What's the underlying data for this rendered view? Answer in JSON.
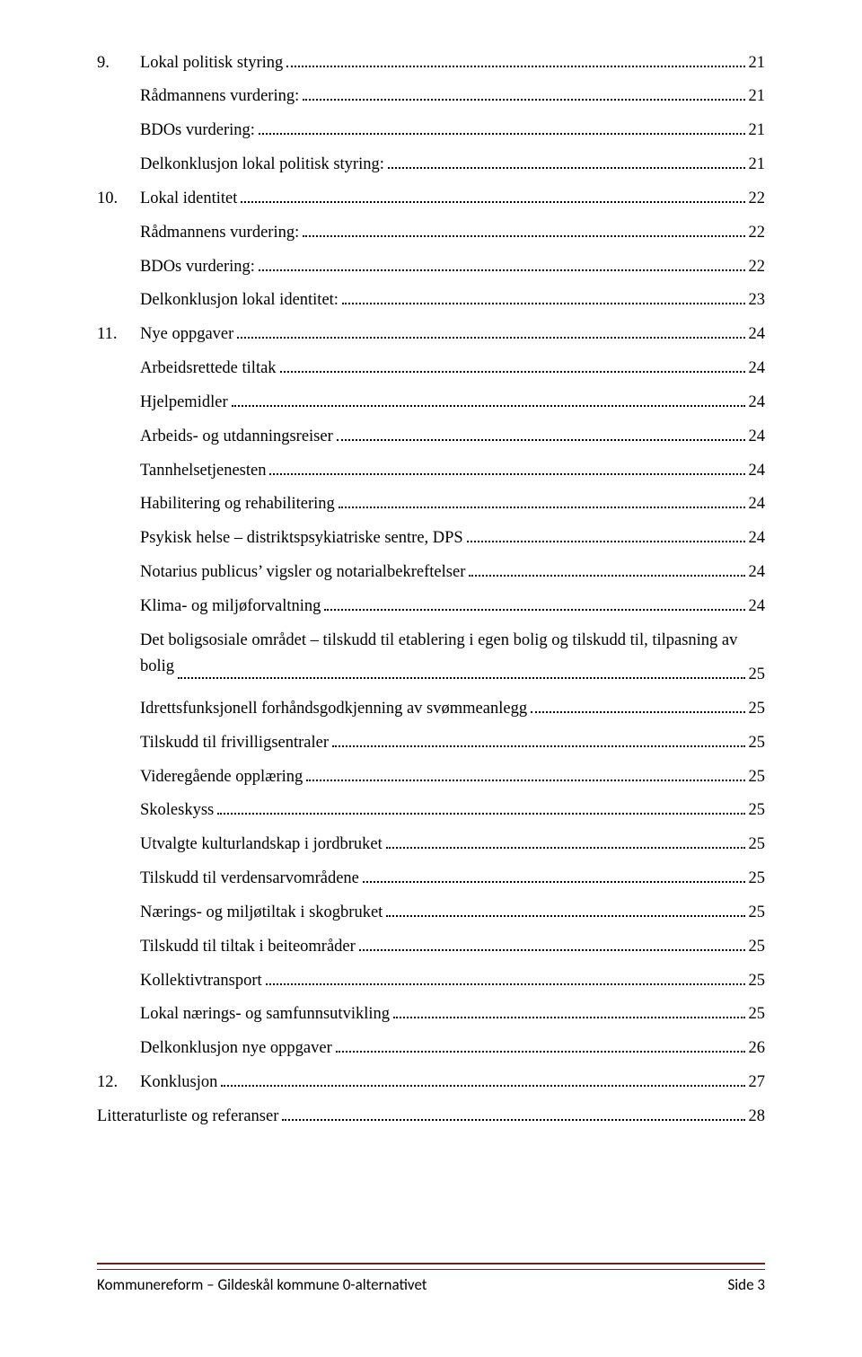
{
  "colors": {
    "text": "#000000",
    "footer_rule": "#622423",
    "background": "#ffffff"
  },
  "typography": {
    "body_font": "Times New Roman",
    "body_size_pt": 12,
    "footer_font": "Calibri",
    "footer_size_pt": 11
  },
  "toc": [
    {
      "level": 0,
      "num": "9.",
      "label": "Lokal politisk styring",
      "page": "21"
    },
    {
      "level": 1,
      "num": "",
      "label": "Rådmannens vurdering:",
      "page": "21"
    },
    {
      "level": 1,
      "num": "",
      "label": "BDOs vurdering:",
      "page": "21"
    },
    {
      "level": 1,
      "num": "",
      "label": "Delkonklusjon lokal politisk styring:",
      "page": "21"
    },
    {
      "level": 0,
      "num": "10.",
      "label": "Lokal identitet",
      "page": "22"
    },
    {
      "level": 1,
      "num": "",
      "label": "Rådmannens vurdering:",
      "page": "22"
    },
    {
      "level": 1,
      "num": "",
      "label": "BDOs vurdering:",
      "page": "22"
    },
    {
      "level": 1,
      "num": "",
      "label": "Delkonklusjon lokal identitet:",
      "page": "23"
    },
    {
      "level": 0,
      "num": "11.",
      "label": "Nye oppgaver",
      "page": "24"
    },
    {
      "level": 1,
      "num": "",
      "label": "Arbeidsrettede tiltak",
      "page": "24"
    },
    {
      "level": 1,
      "num": "",
      "label": "Hjelpemidler",
      "page": "24"
    },
    {
      "level": 1,
      "num": "",
      "label": "Arbeids- og utdanningsreiser",
      "page": "24"
    },
    {
      "level": 1,
      "num": "",
      "label": "Tannhelsetjenesten",
      "page": "24"
    },
    {
      "level": 1,
      "num": "",
      "label": "Habilitering og rehabilitering",
      "page": "24"
    },
    {
      "level": 1,
      "num": "",
      "label": "Psykisk helse – distriktspsykiatriske sentre, DPS",
      "page": "24"
    },
    {
      "level": 1,
      "num": "",
      "label": "Notarius publicus’ vigsler og notarialbekreftelser",
      "page": "24"
    },
    {
      "level": 1,
      "num": "",
      "label": "Klima- og miljøforvaltning",
      "page": "24"
    },
    {
      "level": 1,
      "num": "",
      "label": "Det boligsosiale området – tilskudd til etablering i egen bolig og tilskudd til, tilpasning av bolig",
      "page": "25",
      "wrap": true
    },
    {
      "level": 1,
      "num": "",
      "label": "Idrettsfunksjonell forhåndsgodkjenning av svømmeanlegg",
      "page": "25"
    },
    {
      "level": 1,
      "num": "",
      "label": "Tilskudd til frivilligsentraler",
      "page": "25"
    },
    {
      "level": 1,
      "num": "",
      "label": "Videregående opplæring",
      "page": "25"
    },
    {
      "level": 1,
      "num": "",
      "label": "Skoleskyss",
      "page": "25"
    },
    {
      "level": 1,
      "num": "",
      "label": "Utvalgte kulturlandskap i jordbruket",
      "page": "25"
    },
    {
      "level": 1,
      "num": "",
      "label": "Tilskudd til verdensarvområdene",
      "page": "25"
    },
    {
      "level": 1,
      "num": "",
      "label": "Nærings- og miljøtiltak i skogbruket",
      "page": "25"
    },
    {
      "level": 1,
      "num": "",
      "label": "Tilskudd til tiltak i beiteområder",
      "page": "25"
    },
    {
      "level": 1,
      "num": "",
      "label": "Kollektivtransport",
      "page": "25"
    },
    {
      "level": 1,
      "num": "",
      "label": "Lokal nærings- og samfunnsutvikling",
      "page": "25"
    },
    {
      "level": 1,
      "num": "",
      "label": "Delkonklusjon nye oppgaver",
      "page": "26"
    },
    {
      "level": 0,
      "num": "12.",
      "label": "Konklusjon",
      "page": "27"
    },
    {
      "level": -1,
      "num": "",
      "label": "Litteraturliste og referanser",
      "page": "28"
    }
  ],
  "footer": {
    "left": "Kommunereform – Gildeskål kommune 0-alternativet",
    "right": "Side 3"
  }
}
